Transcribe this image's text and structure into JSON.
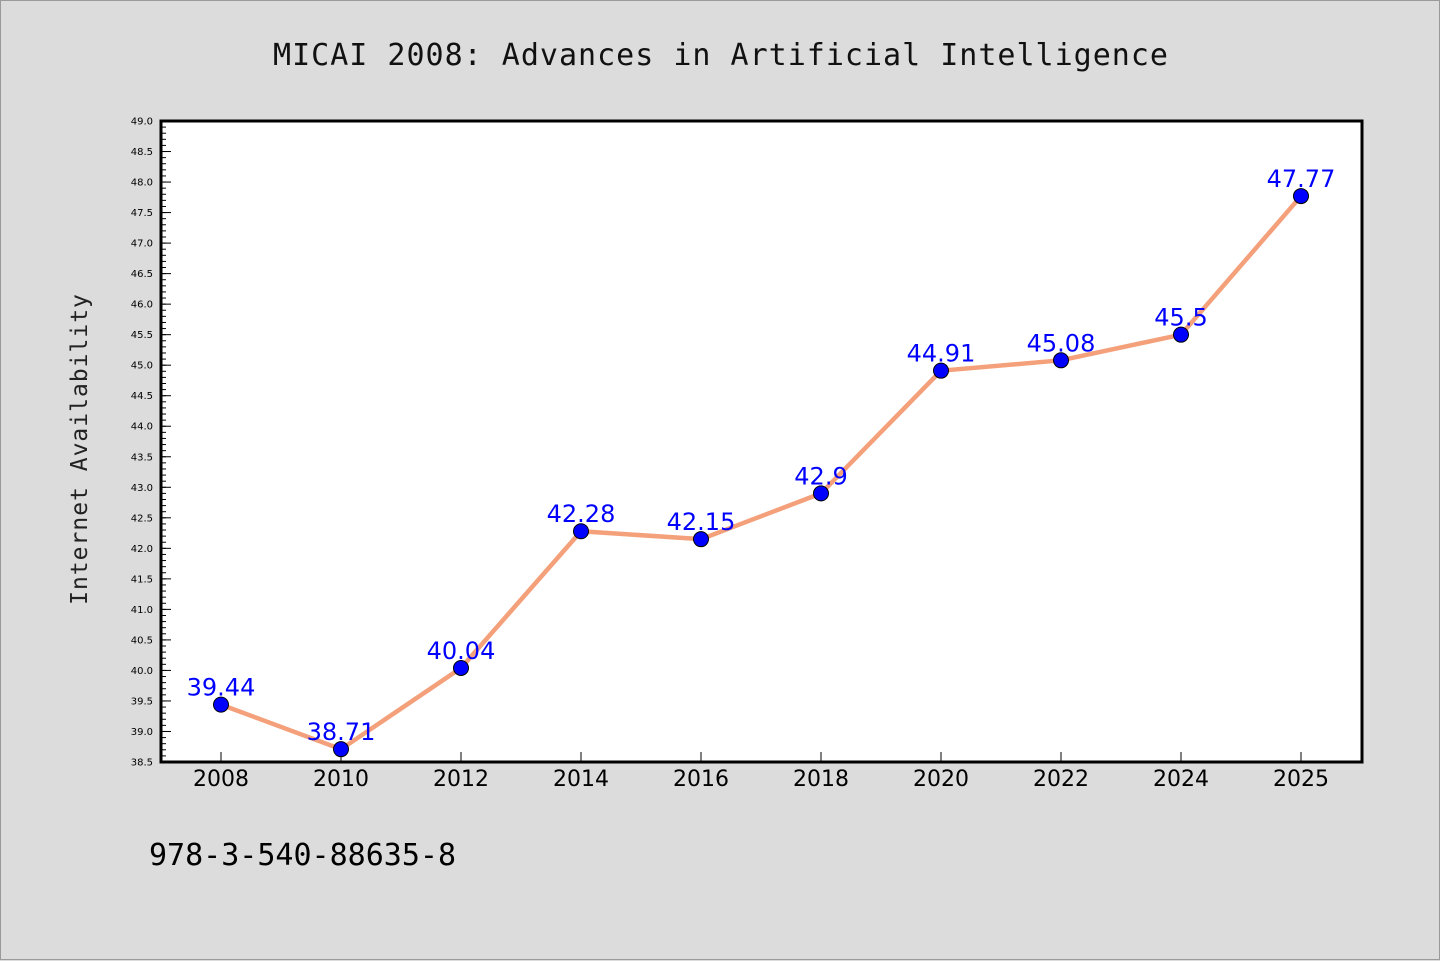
{
  "chart_data": {
    "type": "line",
    "title": "MICAI 2008: Advances in Artificial Intelligence",
    "xlabel": "",
    "ylabel": "Internet Availability",
    "categories": [
      "2008",
      "2010",
      "2012",
      "2014",
      "2016",
      "2018",
      "2020",
      "2022",
      "2024",
      "2025"
    ],
    "series": [
      {
        "values": [
          39.44,
          38.71,
          40.04,
          42.28,
          42.15,
          42.9,
          44.91,
          45.08,
          45.5,
          47.77
        ],
        "data_labels": [
          "39.44",
          "38.71",
          "40.04",
          "42.28",
          "42.15",
          "42.9",
          "44.91",
          "45.08",
          "45.5",
          "47.77"
        ],
        "line_color": "#f4a07a",
        "marker_color": "#0000ff"
      }
    ],
    "ylim": [
      38.5,
      49.0
    ],
    "yticks": [
      "38.5",
      "39.0",
      "39.5",
      "40.0",
      "40.5",
      "41.0",
      "41.5",
      "42.0",
      "42.5",
      "43.0",
      "43.5",
      "44.0",
      "44.5",
      "45.0",
      "45.5",
      "46.0",
      "46.5",
      "47.0",
      "47.5",
      "48.0",
      "48.5",
      "49.0"
    ],
    "grid": false,
    "legend": "none"
  },
  "footer": {
    "isbn": "978-3-540-88635-8"
  },
  "colors": {
    "figure_background": "#dcdcdc",
    "plot_background": "#ffffff",
    "data_label": "#0000ff"
  }
}
